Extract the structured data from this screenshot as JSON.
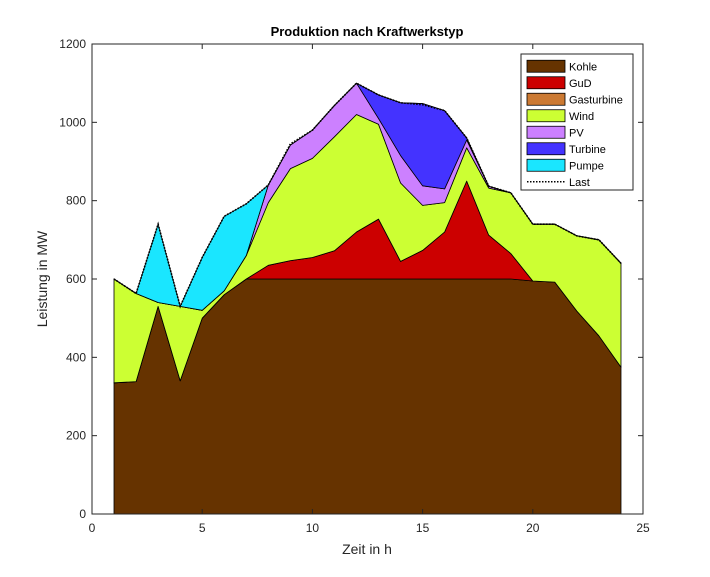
{
  "chart_data": {
    "type": "area",
    "stacked": true,
    "title": "Produktion nach Kraftwerkstyp",
    "xlabel": "Zeit in h",
    "ylabel": "Leistung in MW",
    "xlim": [
      0,
      25
    ],
    "ylim": [
      0,
      1200
    ],
    "xticks": [
      "0",
      "5",
      "10",
      "15",
      "20",
      "25"
    ],
    "yticks": [
      "0",
      "200",
      "400",
      "600",
      "800",
      "1000",
      "1200"
    ],
    "legend_position": "top-right",
    "grid": false,
    "x": [
      1,
      2,
      3,
      4,
      5,
      6,
      7,
      8,
      9,
      10,
      11,
      12,
      13,
      14,
      15,
      16,
      17,
      18,
      19,
      20,
      21,
      22,
      23,
      24
    ],
    "series": [
      {
        "name": "Kohle",
        "color": "#663300",
        "values": [
          335,
          338,
          530,
          340,
          500,
          560,
          600,
          600,
          600,
          600,
          600,
          600,
          600,
          600,
          600,
          600,
          600,
          600,
          600,
          595,
          592,
          518,
          455,
          375
        ]
      },
      {
        "name": "GuD",
        "color": "#cc0000",
        "values": [
          0,
          0,
          0,
          0,
          0,
          0,
          0,
          35,
          47,
          55,
          72,
          120,
          153,
          45,
          73,
          120,
          250,
          112,
          65,
          0,
          0,
          0,
          0,
          0
        ]
      },
      {
        "name": "Gasturbine",
        "color": "#cc7a33",
        "values": [
          0,
          0,
          0,
          0,
          0,
          0,
          0,
          0,
          0,
          0,
          0,
          0,
          0,
          0,
          0,
          0,
          0,
          0,
          0,
          0,
          0,
          0,
          0,
          0
        ]
      },
      {
        "name": "Wind",
        "color": "#ccff33",
        "values": [
          265,
          225,
          10,
          190,
          20,
          10,
          60,
          160,
          235,
          253,
          291,
          300,
          242,
          200,
          115,
          75,
          85,
          120,
          155,
          145,
          148,
          192,
          245,
          265
        ]
      },
      {
        "name": "PV",
        "color": "#cc80ff",
        "values": [
          0,
          0,
          0,
          0,
          0,
          0,
          0,
          45,
          60,
          72,
          80,
          80,
          15,
          70,
          50,
          35,
          20,
          5,
          0,
          0,
          0,
          0,
          0,
          0
        ]
      },
      {
        "name": "Turbine",
        "color": "#4433ff",
        "values": [
          0,
          0,
          0,
          0,
          0,
          0,
          0,
          0,
          0,
          0,
          0,
          0,
          60,
          135,
          210,
          200,
          5,
          0,
          0,
          0,
          0,
          0,
          0,
          0
        ]
      },
      {
        "name": "Pumpe",
        "color": "#1ae6ff",
        "values": [
          0,
          0,
          200,
          0,
          135,
          190,
          132,
          0,
          0,
          0,
          0,
          0,
          0,
          0,
          0,
          0,
          0,
          0,
          0,
          0,
          0,
          0,
          0,
          0
        ]
      }
    ],
    "last": {
      "name": "Last",
      "style": "dotted",
      "values": [
        600,
        563,
        740,
        530,
        655,
        760,
        792,
        840,
        945,
        980,
        1043,
        1100,
        1070,
        1050,
        1045,
        1030,
        960,
        837,
        820,
        740,
        740,
        710,
        700,
        640
      ]
    }
  }
}
